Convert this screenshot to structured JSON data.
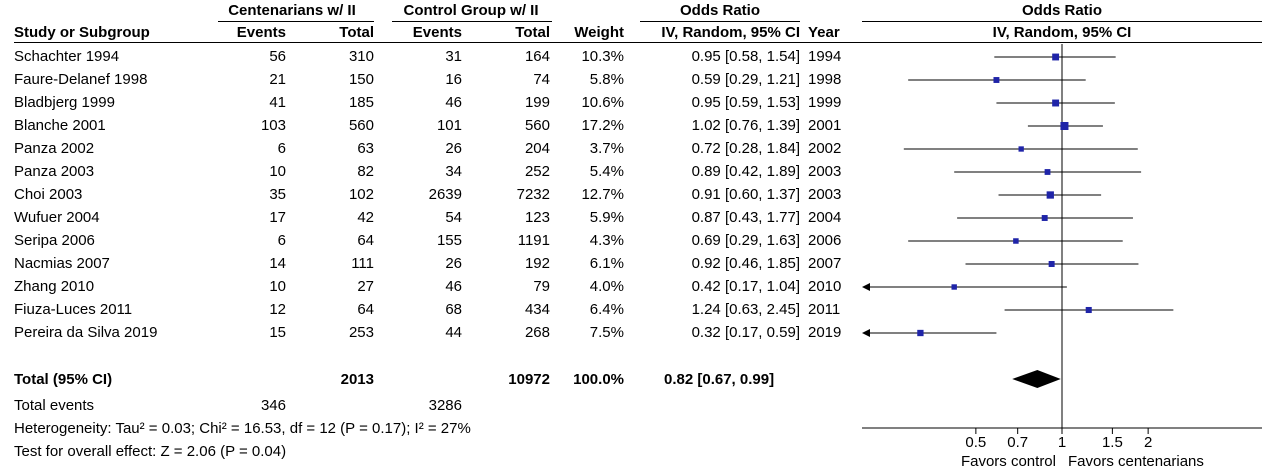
{
  "header": {
    "group1_title": "Centenarians w/ II",
    "group2_title": "Control Group w/ II",
    "or_title": "Odds Ratio",
    "plot_title": "Odds Ratio",
    "col_study": "Study or Subgroup",
    "col_events1": "Events",
    "col_total1": "Total",
    "col_events2": "Events",
    "col_total2": "Total",
    "col_weight": "Weight",
    "col_ci": "IV, Random, 95% CI",
    "col_year": "Year",
    "plot_subtitle": "IV, Random, 95% CI"
  },
  "studies": [
    {
      "name": "Schachter 1994",
      "events1": "56",
      "total1": "310",
      "events2": "31",
      "total2": "164",
      "weight": "10.3%",
      "ci_text": "0.95 [0.58, 1.54]",
      "year": "1994"
    },
    {
      "name": "Faure-Delanef 1998",
      "events1": "21",
      "total1": "150",
      "events2": "16",
      "total2": "74",
      "weight": "5.8%",
      "ci_text": "0.59 [0.29, 1.21]",
      "year": "1998"
    },
    {
      "name": "Bladbjerg 1999",
      "events1": "41",
      "total1": "185",
      "events2": "46",
      "total2": "199",
      "weight": "10.6%",
      "ci_text": "0.95 [0.59, 1.53]",
      "year": "1999"
    },
    {
      "name": "Blanche 2001",
      "events1": "103",
      "total1": "560",
      "events2": "101",
      "total2": "560",
      "weight": "17.2%",
      "ci_text": "1.02 [0.76, 1.39]",
      "year": "2001"
    },
    {
      "name": "Panza 2002",
      "events1": "6",
      "total1": "63",
      "events2": "26",
      "total2": "204",
      "weight": "3.7%",
      "ci_text": "0.72 [0.28, 1.84]",
      "year": "2002"
    },
    {
      "name": "Panza 2003",
      "events1": "10",
      "total1": "82",
      "events2": "34",
      "total2": "252",
      "weight": "5.4%",
      "ci_text": "0.89 [0.42, 1.89]",
      "year": "2003"
    },
    {
      "name": "Choi 2003",
      "events1": "35",
      "total1": "102",
      "events2": "2639",
      "total2": "7232",
      "weight": "12.7%",
      "ci_text": "0.91 [0.60, 1.37]",
      "year": "2003"
    },
    {
      "name": "Wufuer 2004",
      "events1": "17",
      "total1": "42",
      "events2": "54",
      "total2": "123",
      "weight": "5.9%",
      "ci_text": "0.87 [0.43, 1.77]",
      "year": "2004"
    },
    {
      "name": "Seripa 2006",
      "events1": "6",
      "total1": "64",
      "events2": "155",
      "total2": "1191",
      "weight": "4.3%",
      "ci_text": "0.69 [0.29, 1.63]",
      "year": "2006"
    },
    {
      "name": "Nacmias 2007",
      "events1": "14",
      "total1": "111",
      "events2": "26",
      "total2": "192",
      "weight": "6.1%",
      "ci_text": "0.92 [0.46, 1.85]",
      "year": "2007"
    },
    {
      "name": "Zhang 2010",
      "events1": "10",
      "total1": "27",
      "events2": "46",
      "total2": "79",
      "weight": "4.0%",
      "ci_text": "0.42 [0.17, 1.04]",
      "year": "2010"
    },
    {
      "name": "Fiuza-Luces 2011",
      "events1": "12",
      "total1": "64",
      "events2": "68",
      "total2": "434",
      "weight": "6.4%",
      "ci_text": "1.24 [0.63, 2.45]",
      "year": "2011"
    },
    {
      "name": "Pereira da Silva 2019",
      "events1": "15",
      "total1": "253",
      "events2": "44",
      "total2": "268",
      "weight": "7.5%",
      "ci_text": "0.32 [0.17, 0.59]",
      "year": "2019"
    }
  ],
  "total": {
    "label": "Total (95% CI)",
    "total1": "2013",
    "total2": "10972",
    "weight": "100.0%",
    "ci_text": "0.82 [0.67, 0.99]"
  },
  "footer": {
    "events_label": "Total events",
    "events1": "346",
    "events2": "3286",
    "heterogeneity": "Heterogeneity: Tau² = 0.03; Chi² = 16.53, df = 12 (P = 0.17); I² = 27%",
    "overall": "Test for overall effect: Z = 2.06 (P = 0.04)"
  },
  "axis": {
    "ticks": [
      "0.5",
      "0.7",
      "1",
      "1.5",
      "2"
    ],
    "favors_left": "Favors control",
    "favors_right": "Favors centenarians"
  },
  "chart_data": {
    "type": "forest",
    "scale": "log",
    "xlim": [
      0.2,
      5
    ],
    "tick_values": [
      0.5,
      0.7,
      1,
      1.5,
      2
    ],
    "null_line": 1,
    "colors": {
      "marker": "#1f24a8",
      "line": "#000000",
      "diamond": "#000000"
    },
    "points": [
      {
        "or": 0.95,
        "lo": 0.58,
        "hi": 1.54,
        "weight": 10.3
      },
      {
        "or": 0.59,
        "lo": 0.29,
        "hi": 1.21,
        "weight": 5.8
      },
      {
        "or": 0.95,
        "lo": 0.59,
        "hi": 1.53,
        "weight": 10.6
      },
      {
        "or": 1.02,
        "lo": 0.76,
        "hi": 1.39,
        "weight": 17.2
      },
      {
        "or": 0.72,
        "lo": 0.28,
        "hi": 1.84,
        "weight": 3.7
      },
      {
        "or": 0.89,
        "lo": 0.42,
        "hi": 1.89,
        "weight": 5.4
      },
      {
        "or": 0.91,
        "lo": 0.6,
        "hi": 1.37,
        "weight": 12.7
      },
      {
        "or": 0.87,
        "lo": 0.43,
        "hi": 1.77,
        "weight": 5.9
      },
      {
        "or": 0.69,
        "lo": 0.29,
        "hi": 1.63,
        "weight": 4.3
      },
      {
        "or": 0.92,
        "lo": 0.46,
        "hi": 1.85,
        "weight": 6.1
      },
      {
        "or": 0.42,
        "lo": 0.17,
        "hi": 1.04,
        "weight": 4.0
      },
      {
        "or": 1.24,
        "lo": 0.63,
        "hi": 2.45,
        "weight": 6.4
      },
      {
        "or": 0.32,
        "lo": 0.17,
        "hi": 0.59,
        "weight": 7.5
      }
    ],
    "pooled": {
      "or": 0.82,
      "lo": 0.67,
      "hi": 0.99
    }
  }
}
